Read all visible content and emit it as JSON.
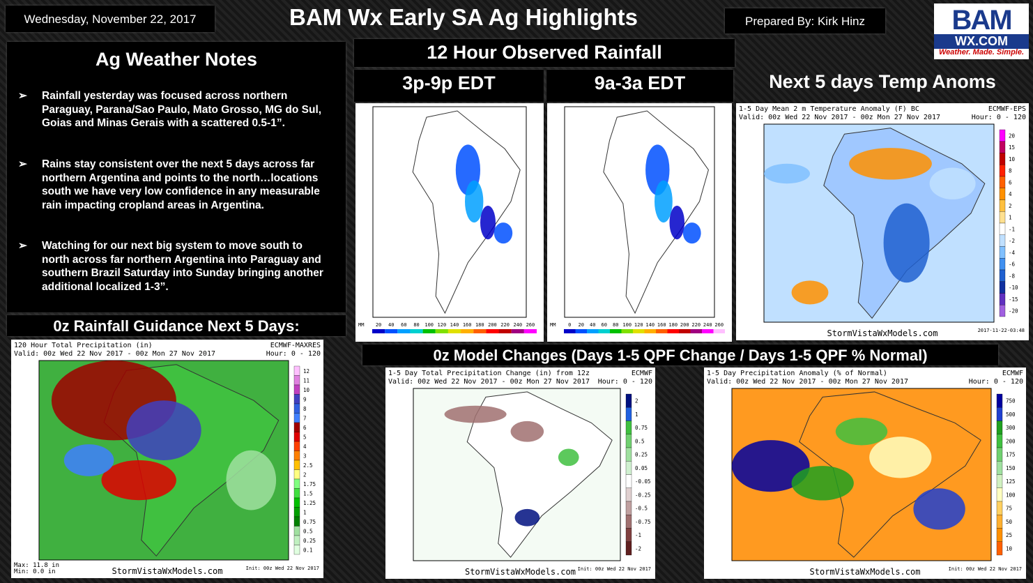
{
  "header": {
    "date": "Wednesday, November 22, 2017",
    "title": "BAM Wx Early SA Ag Highlights",
    "prepared_by": "Prepared By: Kirk Hinz",
    "logo": {
      "mark": "BAM",
      "site": "WX.COM",
      "tagline": "Weather. Made. Simple."
    }
  },
  "notes": {
    "title": "Ag Weather Notes",
    "bullet": "➢",
    "items": [
      "Rainfall yesterday was focused across northern Paraguay, Parana/Sao Paulo, Mato Grosso, MG do Sul, Goias and Minas Gerais with a scattered 0.5-1”.",
      "Rains stay consistent over the next 5 days across far northern Argentina and points to the north…locations south we have very low confidence in any measurable rain impacting cropland areas in Argentina.",
      "Watching for our next big system to move south to north across far northern Argentina into Paraguay and southern Brazil Saturday into Sunday bringing another additional localized 1-3”."
    ]
  },
  "sections": {
    "observed": "12 Hour Observed Rainfall",
    "obs_left": "3p-9p EDT",
    "obs_right": "9a-3a EDT",
    "temps": "Next 5 days Temp Anoms",
    "guidance": "0z Rainfall Guidance Next 5 Days:",
    "changes": "0z Model Changes (Days 1-5 QPF Change / Days 1-5 QPF % Normal)"
  },
  "maps": [
    {
      "unit": "MM",
      "scale": [
        "20",
        "40",
        "60",
        "80",
        "100",
        "120",
        "140",
        "160",
        "180",
        "200",
        "220",
        "240",
        "260"
      ]
    },
    {
      "unit": "MM",
      "scale": [
        "0",
        "20",
        "40",
        "60",
        "80",
        "100",
        "120",
        "140",
        "160",
        "180",
        "200",
        "220",
        "240",
        "260"
      ]
    },
    {
      "title": "1-5 Day Mean 2 m Temperature Anomaly (F) BC",
      "model": "ECMWF-EPS",
      "valid": "Valid: 00z Wed 22 Nov 2017 - 00z Mon 27 Nov 2017",
      "hour": "Hour: 0 - 120",
      "scale": [
        "20",
        "15",
        "10",
        "8",
        "6",
        "4",
        "2",
        "1",
        "-1",
        "-2",
        "-4",
        "-6",
        "-8",
        "-10",
        "-15",
        "-20"
      ],
      "footer": "StormVistaWxModels.com",
      "init": "2017-11-22-03:48"
    },
    {
      "title": "120 Hour Total Precipitation (in)",
      "model": "ECMWF-MAXRES",
      "valid": "Valid: 00z Wed 22 Nov 2017 - 00z Mon 27 Nov 2017",
      "hour": "Hour: 0 - 120",
      "scale": [
        "12",
        "11",
        "10",
        "9",
        "8",
        "7",
        "6",
        "5",
        "4",
        "3",
        "2.5",
        "2",
        "1.75",
        "1.5",
        "1.25",
        "1",
        "0.75",
        "0.5",
        "0.25",
        "0.1"
      ],
      "stats": [
        "Max: 11.8 in",
        "Min: 0.0 in"
      ],
      "footer": "StormVistaWxModels.com",
      "init": "Init: 00z Wed 22 Nov 2017"
    },
    {
      "title": "1-5 Day Total Precipitation Change (in) from 12z",
      "model": "ECMWF",
      "valid": "Valid: 00z Wed 22 Nov 2017 - 00z Mon 27 Nov 2017",
      "hour": "Hour: 0 - 120",
      "scale": [
        "2",
        "1",
        "0.75",
        "0.5",
        "0.25",
        "0.05",
        "-0.05",
        "-0.25",
        "-0.5",
        "-0.75",
        "-1",
        "-2"
      ],
      "footer": "StormVistaWxModels.com",
      "init": "Init: 00z Wed 22 Nov 2017"
    },
    {
      "title": "1-5 Day Precipitation Anomaly (% of Normal)",
      "model": "ECMWF",
      "valid": "Valid: 00z Wed 22 Nov 2017 - 00z Mon 27 Nov 2017",
      "hour": "Hour: 0 - 120",
      "scale": [
        "750",
        "500",
        "300",
        "200",
        "175",
        "150",
        "125",
        "100",
        "75",
        "50",
        "25",
        "10"
      ],
      "footer": "StormVistaWxModels.com",
      "init": "Init: 00z Wed 22 Nov 2017"
    }
  ]
}
